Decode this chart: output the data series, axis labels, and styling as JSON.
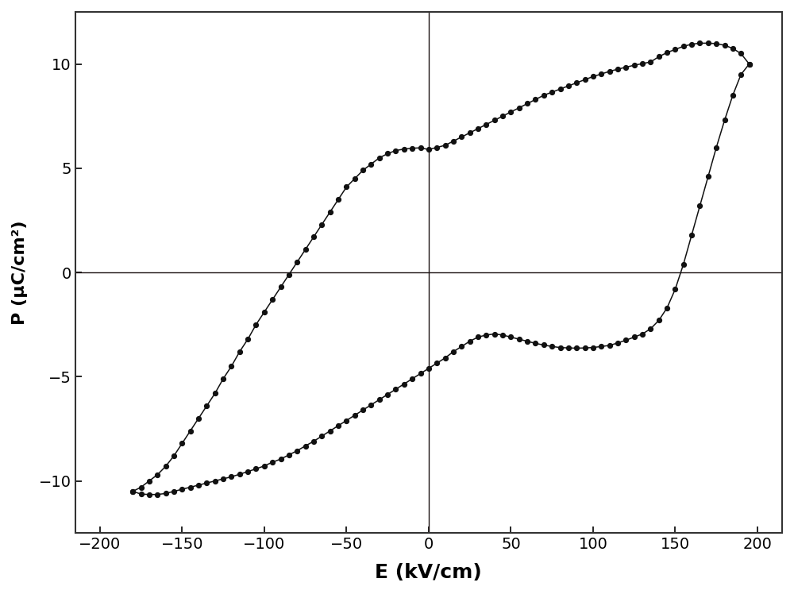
{
  "xlabel": "E (kV/cm)",
  "ylabel": "P (μC/cm²)",
  "xlim": [
    -215,
    215
  ],
  "ylim": [
    -12.5,
    12.5
  ],
  "xticks": [
    -200,
    -150,
    -100,
    -50,
    0,
    50,
    100,
    150,
    200
  ],
  "yticks": [
    -10,
    -5,
    0,
    5,
    10
  ],
  "title": "",
  "line_color": "#111111",
  "marker": "o",
  "markersize": 4.2,
  "linewidth": 1.1,
  "background_color": "#ffffff",
  "axisline_color": "#1a1010",
  "xlabel_fontsize": 18,
  "ylabel_fontsize": 16,
  "tick_fontsize": 14,
  "figsize": [
    10.0,
    7.48
  ],
  "dpi": 100,
  "upper_branch_E": [
    -180,
    -175,
    -170,
    -165,
    -160,
    -155,
    -150,
    -145,
    -140,
    -135,
    -130,
    -125,
    -120,
    -115,
    -110,
    -105,
    -100,
    -95,
    -90,
    -85,
    -80,
    -75,
    -70,
    -65,
    -60,
    -55,
    -50,
    -45,
    -40,
    -35,
    -30,
    -25,
    -20,
    -15,
    -10,
    -5,
    0,
    5,
    10,
    15,
    20,
    25,
    30,
    35,
    40,
    45,
    50,
    55,
    60,
    65,
    70,
    75,
    80,
    85,
    90,
    95,
    100,
    105,
    110,
    115,
    120,
    125,
    130,
    135,
    140,
    145,
    150,
    155,
    160,
    165,
    170,
    175,
    180,
    185,
    190,
    195
  ],
  "upper_branch_P": [
    -10.5,
    -10.3,
    -10.0,
    -9.7,
    -9.3,
    -8.8,
    -8.2,
    -7.6,
    -7.0,
    -6.4,
    -5.8,
    -5.1,
    -4.5,
    -3.8,
    -3.2,
    -2.5,
    -1.9,
    -1.3,
    -0.7,
    -0.1,
    0.5,
    1.1,
    1.7,
    2.3,
    2.9,
    3.5,
    4.1,
    4.5,
    4.9,
    5.2,
    5.5,
    5.7,
    5.85,
    5.92,
    5.96,
    5.98,
    5.9,
    6.0,
    6.1,
    6.3,
    6.5,
    6.7,
    6.9,
    7.1,
    7.3,
    7.5,
    7.7,
    7.9,
    8.1,
    8.3,
    8.5,
    8.65,
    8.8,
    8.95,
    9.1,
    9.25,
    9.4,
    9.52,
    9.65,
    9.75,
    9.85,
    9.94,
    10.02,
    10.1,
    10.35,
    10.55,
    10.7,
    10.85,
    10.95,
    11.0,
    11.0,
    10.98,
    10.9,
    10.75,
    10.5,
    10.0
  ],
  "lower_branch_E": [
    195,
    190,
    185,
    180,
    175,
    170,
    165,
    160,
    155,
    150,
    145,
    140,
    135,
    130,
    125,
    120,
    115,
    110,
    105,
    100,
    95,
    90,
    85,
    80,
    75,
    70,
    65,
    60,
    55,
    50,
    45,
    40,
    35,
    30,
    25,
    20,
    15,
    10,
    5,
    0,
    -5,
    -10,
    -15,
    -20,
    -25,
    -30,
    -35,
    -40,
    -45,
    -50,
    -55,
    -60,
    -65,
    -70,
    -75,
    -80,
    -85,
    -90,
    -95,
    -100,
    -105,
    -110,
    -115,
    -120,
    -125,
    -130,
    -135,
    -140,
    -145,
    -150,
    -155,
    -160,
    -165,
    -170,
    -175,
    -180
  ],
  "lower_branch_P": [
    10.0,
    9.5,
    8.5,
    7.3,
    6.0,
    4.6,
    3.2,
    1.8,
    0.4,
    -0.8,
    -1.7,
    -2.3,
    -2.7,
    -2.95,
    -3.1,
    -3.25,
    -3.38,
    -3.5,
    -3.55,
    -3.6,
    -3.62,
    -3.63,
    -3.62,
    -3.6,
    -3.55,
    -3.48,
    -3.4,
    -3.3,
    -3.2,
    -3.1,
    -3.0,
    -2.95,
    -3.0,
    -3.1,
    -3.3,
    -3.55,
    -3.8,
    -4.1,
    -4.35,
    -4.6,
    -4.85,
    -5.1,
    -5.35,
    -5.6,
    -5.85,
    -6.1,
    -6.35,
    -6.6,
    -6.85,
    -7.1,
    -7.35,
    -7.6,
    -7.85,
    -8.1,
    -8.32,
    -8.55,
    -8.75,
    -8.95,
    -9.1,
    -9.28,
    -9.42,
    -9.55,
    -9.68,
    -9.8,
    -9.9,
    -10.0,
    -10.1,
    -10.2,
    -10.3,
    -10.4,
    -10.5,
    -10.6,
    -10.65,
    -10.65,
    -10.63,
    -10.5
  ]
}
